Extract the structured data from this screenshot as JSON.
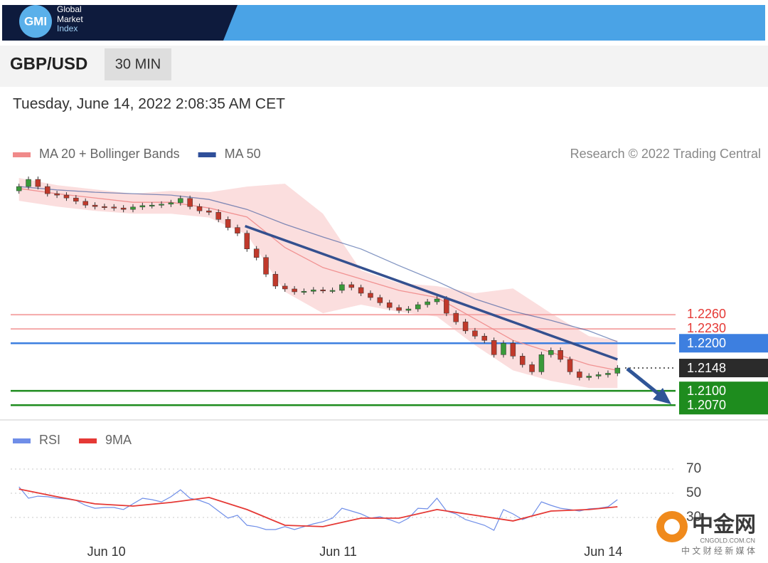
{
  "header": {
    "logo": "GMI",
    "logo_lines": [
      "Global",
      "Market",
      "Index"
    ]
  },
  "toolbar": {
    "symbol": "GBP/USD",
    "interval": "30 MIN"
  },
  "timestamp": "Tuesday, June 14, 2022 2:08:35 AM CET",
  "watermark": {
    "name": "中金网",
    "url": "CNGOLD.COM.CN",
    "tagline": "中 文 财 经 新 媒 体"
  },
  "chart_data": [
    {
      "type": "candlestick",
      "credit": "Research © 2022 Trading Central",
      "xlim": [
        -0.5,
        63.5
      ],
      "ylim": [
        1.2039,
        1.2562
      ],
      "up_color": "#3a9a3a",
      "down_color": "#c0392b",
      "candles": {
        "open": [
          1.252,
          1.2529,
          1.2544,
          1.2529,
          1.2514,
          1.2511,
          1.2505,
          1.2498,
          1.249,
          1.2487,
          1.2486,
          1.2484,
          1.2481,
          1.2486,
          1.2489,
          1.249,
          1.2492,
          1.2495,
          1.2504,
          1.2487,
          1.2478,
          1.2475,
          1.246,
          1.2443,
          1.2431,
          1.2398,
          1.238,
          1.2345,
          1.232,
          1.2314,
          1.2308,
          1.2309,
          1.2312,
          1.2311,
          1.2311,
          1.2323,
          1.2317,
          1.2305,
          1.2296,
          1.2285,
          1.2275,
          1.2269,
          1.2272,
          1.2281,
          1.2287,
          1.2293,
          1.2263,
          1.2245,
          1.2226,
          1.2215,
          1.2206,
          1.2176,
          1.22,
          1.2173,
          1.2155,
          1.214,
          1.2176,
          1.2185,
          1.2166,
          1.214,
          1.2128,
          1.2131,
          1.2134,
          1.2137
        ],
        "high": [
          1.2535,
          1.255,
          1.255,
          1.2535,
          1.252,
          1.2517,
          1.2511,
          1.2504,
          1.2496,
          1.2493,
          1.2492,
          1.249,
          1.2492,
          1.2495,
          1.2496,
          1.2498,
          1.2501,
          1.251,
          1.251,
          1.2493,
          1.2484,
          1.2481,
          1.2466,
          1.2449,
          1.2437,
          1.2404,
          1.2386,
          1.2351,
          1.2326,
          1.232,
          1.2315,
          1.2318,
          1.2318,
          1.2317,
          1.2329,
          1.2329,
          1.2323,
          1.2311,
          1.2302,
          1.2291,
          1.2281,
          1.2278,
          1.2287,
          1.2293,
          1.2299,
          1.2299,
          1.2269,
          1.2251,
          1.2232,
          1.2221,
          1.2212,
          1.2206,
          1.2206,
          1.2179,
          1.2161,
          1.2182,
          1.2191,
          1.2191,
          1.2172,
          1.2146,
          1.2137,
          1.214,
          1.2143,
          1.2154
        ],
        "low": [
          1.2514,
          1.2523,
          1.2523,
          1.2508,
          1.2505,
          1.2499,
          1.2492,
          1.2484,
          1.2481,
          1.248,
          1.2478,
          1.2475,
          1.2475,
          1.248,
          1.2483,
          1.2484,
          1.2486,
          1.2489,
          1.2481,
          1.2472,
          1.2469,
          1.2454,
          1.2437,
          1.2425,
          1.2392,
          1.2374,
          1.2339,
          1.2314,
          1.2308,
          1.2302,
          1.2302,
          1.2303,
          1.2305,
          1.2305,
          1.2305,
          1.2311,
          1.2299,
          1.229,
          1.2279,
          1.2269,
          1.2263,
          1.2263,
          1.2266,
          1.2275,
          1.2281,
          1.2257,
          1.2239,
          1.222,
          1.2209,
          1.22,
          1.217,
          1.217,
          1.2167,
          1.2149,
          1.2134,
          1.2134,
          1.217,
          1.216,
          1.2134,
          1.2122,
          1.2122,
          1.2125,
          1.2128,
          1.2131
        ],
        "close": [
          1.2529,
          1.2544,
          1.2529,
          1.2514,
          1.2511,
          1.2505,
          1.2498,
          1.249,
          1.2487,
          1.2486,
          1.2484,
          1.2481,
          1.2486,
          1.2489,
          1.249,
          1.2492,
          1.2495,
          1.2504,
          1.2487,
          1.2478,
          1.2475,
          1.246,
          1.2443,
          1.2431,
          1.2398,
          1.238,
          1.2345,
          1.232,
          1.2314,
          1.2308,
          1.2309,
          1.2312,
          1.2311,
          1.2311,
          1.2323,
          1.2317,
          1.2305,
          1.2296,
          1.2285,
          1.2275,
          1.2269,
          1.2272,
          1.2281,
          1.2287,
          1.2293,
          1.2263,
          1.2245,
          1.2226,
          1.2215,
          1.2206,
          1.2176,
          1.22,
          1.2173,
          1.2155,
          1.214,
          1.2176,
          1.2185,
          1.2166,
          1.214,
          1.2128,
          1.2131,
          1.2134,
          1.2137,
          1.2148
        ]
      },
      "series": [
        {
          "name": "MA 20 + Bollinger Bands",
          "color": "#f08a8a",
          "x": [
            0,
            4,
            8,
            12,
            16,
            20,
            24,
            28,
            32,
            36,
            40,
            44,
            48,
            52,
            56,
            60,
            63
          ],
          "values": [
            1.2525,
            1.2514,
            1.2505,
            1.2496,
            1.2496,
            1.2484,
            1.2465,
            1.2401,
            1.2359,
            1.2335,
            1.2311,
            1.2296,
            1.2251,
            1.2206,
            1.2181,
            1.2155,
            1.2143
          ],
          "upper": [
            1.2547,
            1.2532,
            1.2523,
            1.2514,
            1.252,
            1.2517,
            1.2529,
            1.2535,
            1.2472,
            1.2353,
            1.2326,
            1.232,
            1.2305,
            1.2315,
            1.2263,
            1.2215,
            1.2206
          ],
          "lower": [
            1.2499,
            1.2487,
            1.2478,
            1.2472,
            1.2472,
            1.2464,
            1.2428,
            1.2308,
            1.2263,
            1.2281,
            1.2266,
            1.2256,
            1.2196,
            1.2143,
            1.2121,
            1.2106,
            1.2106
          ]
        },
        {
          "name": "MA 50",
          "color": "#2f4f9a",
          "x": [
            0,
            4,
            8,
            12,
            16,
            20,
            24,
            28,
            32,
            36,
            40,
            44,
            48,
            52,
            56,
            60,
            63
          ],
          "values": [
            1.2529,
            1.2522,
            1.2517,
            1.2514,
            1.2511,
            1.2502,
            1.2481,
            1.245,
            1.2423,
            1.2398,
            1.2363,
            1.233,
            1.2293,
            1.2267,
            1.2248,
            1.2226,
            1.2203
          ]
        }
      ],
      "trendline": {
        "x": [
          23.8,
          63
        ],
        "values": [
          1.2446,
          1.2166
        ],
        "color": "#34508f"
      },
      "levels": [
        {
          "value": 1.226,
          "label": "1.2260",
          "color": "#f5a9a9",
          "text_color": "#e53935"
        },
        {
          "value": 1.223,
          "label": "1.2230",
          "color": "#f5a9a9",
          "text_color": "#e53935"
        },
        {
          "value": 1.22,
          "label": "1.2200",
          "color": "#3d7fe0",
          "boxed": true
        },
        {
          "value": 1.2148,
          "label": "1.2148",
          "color": "#2b2b2b",
          "boxed": true,
          "dotted": true
        },
        {
          "value": 1.21,
          "label": "1.2100",
          "color": "#1e8c1e",
          "boxed": true
        },
        {
          "value": 1.207,
          "label": "1.2070",
          "color": "#1e8c1e",
          "boxed": true
        }
      ]
    },
    {
      "type": "line",
      "xlim": [
        -0.5,
        63.5
      ],
      "ylim": [
        13.5,
        81.2
      ],
      "yticks": [
        30,
        50,
        70
      ],
      "grid": true,
      "xticks": [
        {
          "value": 9.2,
          "label": "Jun 10"
        },
        {
          "value": 33.6,
          "label": "Jun 11"
        },
        {
          "value": 61.5,
          "label": "Jun 14"
        }
      ],
      "series": [
        {
          "name": "RSI",
          "color": "#6f8ee8",
          "values": [
            55.3,
            45.9,
            47.6,
            47.1,
            45.9,
            45.3,
            44.1,
            40,
            37.6,
            38.2,
            38.2,
            36.5,
            41.2,
            45.9,
            44.7,
            42.9,
            47.1,
            52.9,
            45.9,
            44.1,
            41.2,
            35.3,
            29.4,
            31.8,
            23.5,
            22.4,
            20,
            20,
            22.4,
            20,
            22.4,
            24.7,
            26.5,
            29.4,
            37.6,
            35.3,
            32.9,
            29.4,
            30.6,
            28.2,
            25.3,
            29.4,
            37.6,
            37.1,
            45.9,
            35.3,
            32.9,
            28.2,
            25.9,
            23.5,
            19.4,
            36.5,
            32.9,
            28.2,
            31.2,
            42.9,
            40,
            37.6,
            36.5,
            35.3,
            37.1,
            37.6,
            38.8,
            44.7
          ]
        },
        {
          "name": "9MA",
          "color": "#e53935",
          "x": [
            0,
            4,
            8,
            12,
            16,
            20,
            24,
            28,
            32,
            36,
            40,
            44,
            48,
            52,
            56,
            60,
            63
          ],
          "values": [
            53.5,
            47.1,
            41.2,
            39.4,
            42.4,
            46.5,
            36.5,
            23.5,
            22.4,
            29.4,
            29.4,
            36.5,
            31.8,
            27.1,
            35.3,
            36.5,
            38.8
          ]
        }
      ]
    }
  ]
}
